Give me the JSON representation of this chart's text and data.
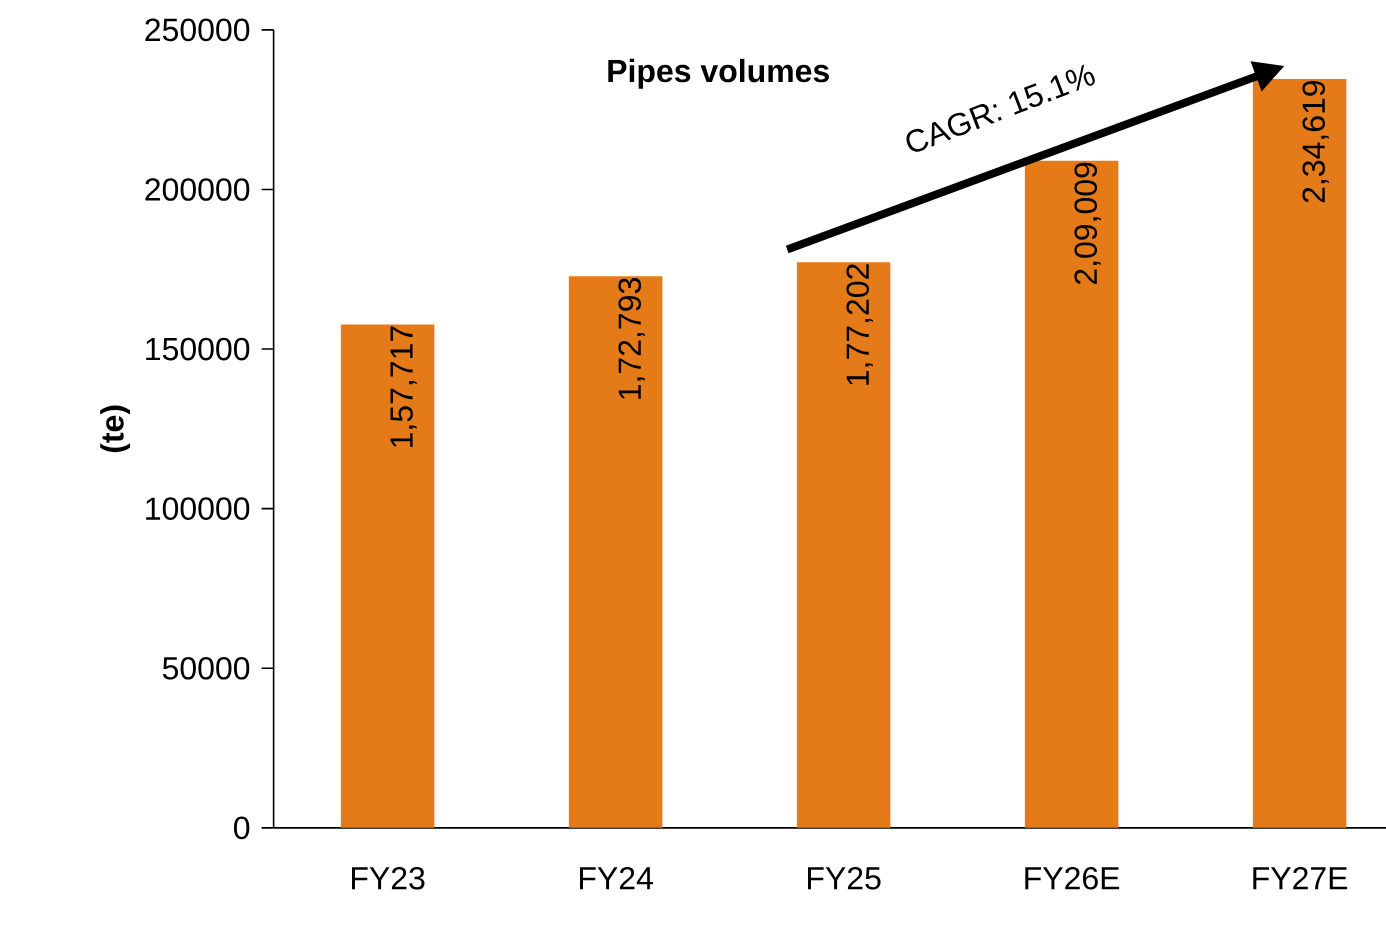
{
  "chart_data": {
    "type": "bar",
    "title": "Pipes volumes",
    "ylabel": "(te)",
    "categories": [
      "FY23",
      "FY24",
      "FY25",
      "FY26E",
      "FY27E"
    ],
    "values": [
      157717,
      172793,
      177202,
      209009,
      234619
    ],
    "value_labels": [
      "1,57,717",
      "1,72,793",
      "1,77,202",
      "2,09,009",
      "2,34,619"
    ],
    "color": "#e57a19",
    "ylim": [
      0,
      250000
    ],
    "yticks": [
      0,
      50000,
      100000,
      150000,
      200000,
      250000
    ],
    "annotations": [
      "CAGR: 15.1%"
    ],
    "grid": false
  }
}
